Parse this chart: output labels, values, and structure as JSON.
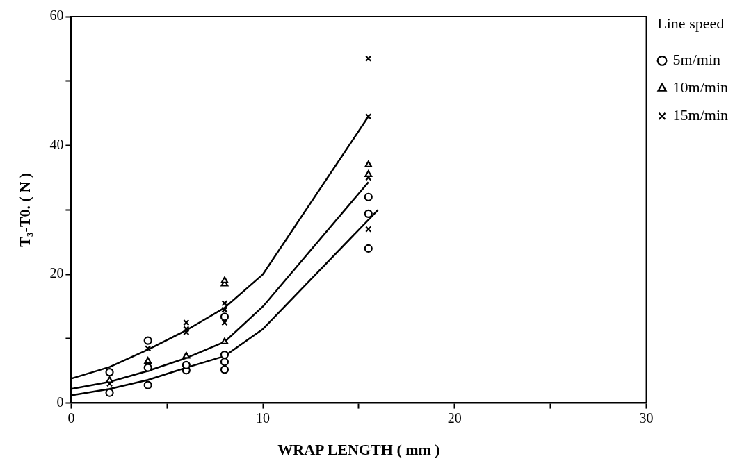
{
  "chart_data": {
    "type": "scatter",
    "xlabel": "WRAP LENGTH ( mm )",
    "ylabel": "T₃-T0. ( N )",
    "legend_title": "Line speed",
    "legend": "top right",
    "grid": false,
    "xlim": [
      0,
      30
    ],
    "xticks": [
      0,
      {
        "value": 5,
        "label": null
      },
      10,
      {
        "value": 15,
        "label": null
      },
      20,
      {
        "value": 25,
        "label": null
      },
      30
    ],
    "ylim": [
      0,
      60
    ],
    "yticks": [
      0,
      {
        "value": 10,
        "label": null
      },
      20,
      {
        "value": 30,
        "label": null
      },
      40,
      {
        "value": 50,
        "label": null
      },
      60
    ],
    "series": [
      {
        "name": "5m/min",
        "marker": "circle",
        "color": "#000000",
        "x": [
          2,
          2,
          4,
          4,
          4,
          6,
          6,
          8,
          8,
          8,
          8,
          15.5,
          15.5,
          15.5
        ],
        "values": [
          1.6,
          4.8,
          2.8,
          5.5,
          9.7,
          5.1,
          5.9,
          5.2,
          6.4,
          7.5,
          13.4,
          24,
          29.4,
          32
        ]
      },
      {
        "name": "10m/min",
        "marker": "triangle",
        "color": "#000000",
        "x": [
          2,
          4,
          6,
          8,
          8,
          8,
          15.5,
          15.5
        ],
        "values": [
          3.5,
          6.5,
          7.3,
          9.5,
          18.5,
          19,
          35.5,
          37
        ]
      },
      {
        "name": "15m/min",
        "marker": "cross",
        "color": "#000000",
        "x": [
          2,
          4,
          6,
          6,
          6,
          8,
          8,
          8,
          15.5,
          15.5,
          15.5,
          15.5
        ],
        "values": [
          3,
          8.5,
          11,
          11.5,
          12.5,
          12.5,
          14.5,
          15.5,
          27,
          35,
          44.5,
          53.5
        ]
      },
      {
        "type": "line",
        "marker": "none",
        "color": "#000000",
        "x": [
          0,
          2,
          4,
          6,
          8,
          10,
          15.5
        ],
        "values": [
          3.8,
          5.6,
          8.3,
          11.3,
          14.8,
          20,
          44.5
        ]
      },
      {
        "type": "line",
        "marker": "none",
        "color": "#000000",
        "x": [
          0,
          2,
          4,
          6,
          8,
          10,
          15.5
        ],
        "values": [
          2.2,
          3.3,
          5,
          7,
          9.5,
          15,
          34.3
        ]
      },
      {
        "type": "line",
        "marker": "none",
        "color": "#000000",
        "x": [
          0,
          2,
          4,
          6,
          8,
          10,
          16
        ],
        "values": [
          1.2,
          2.2,
          3.6,
          5.5,
          7.3,
          11.5,
          30
        ]
      }
    ]
  }
}
